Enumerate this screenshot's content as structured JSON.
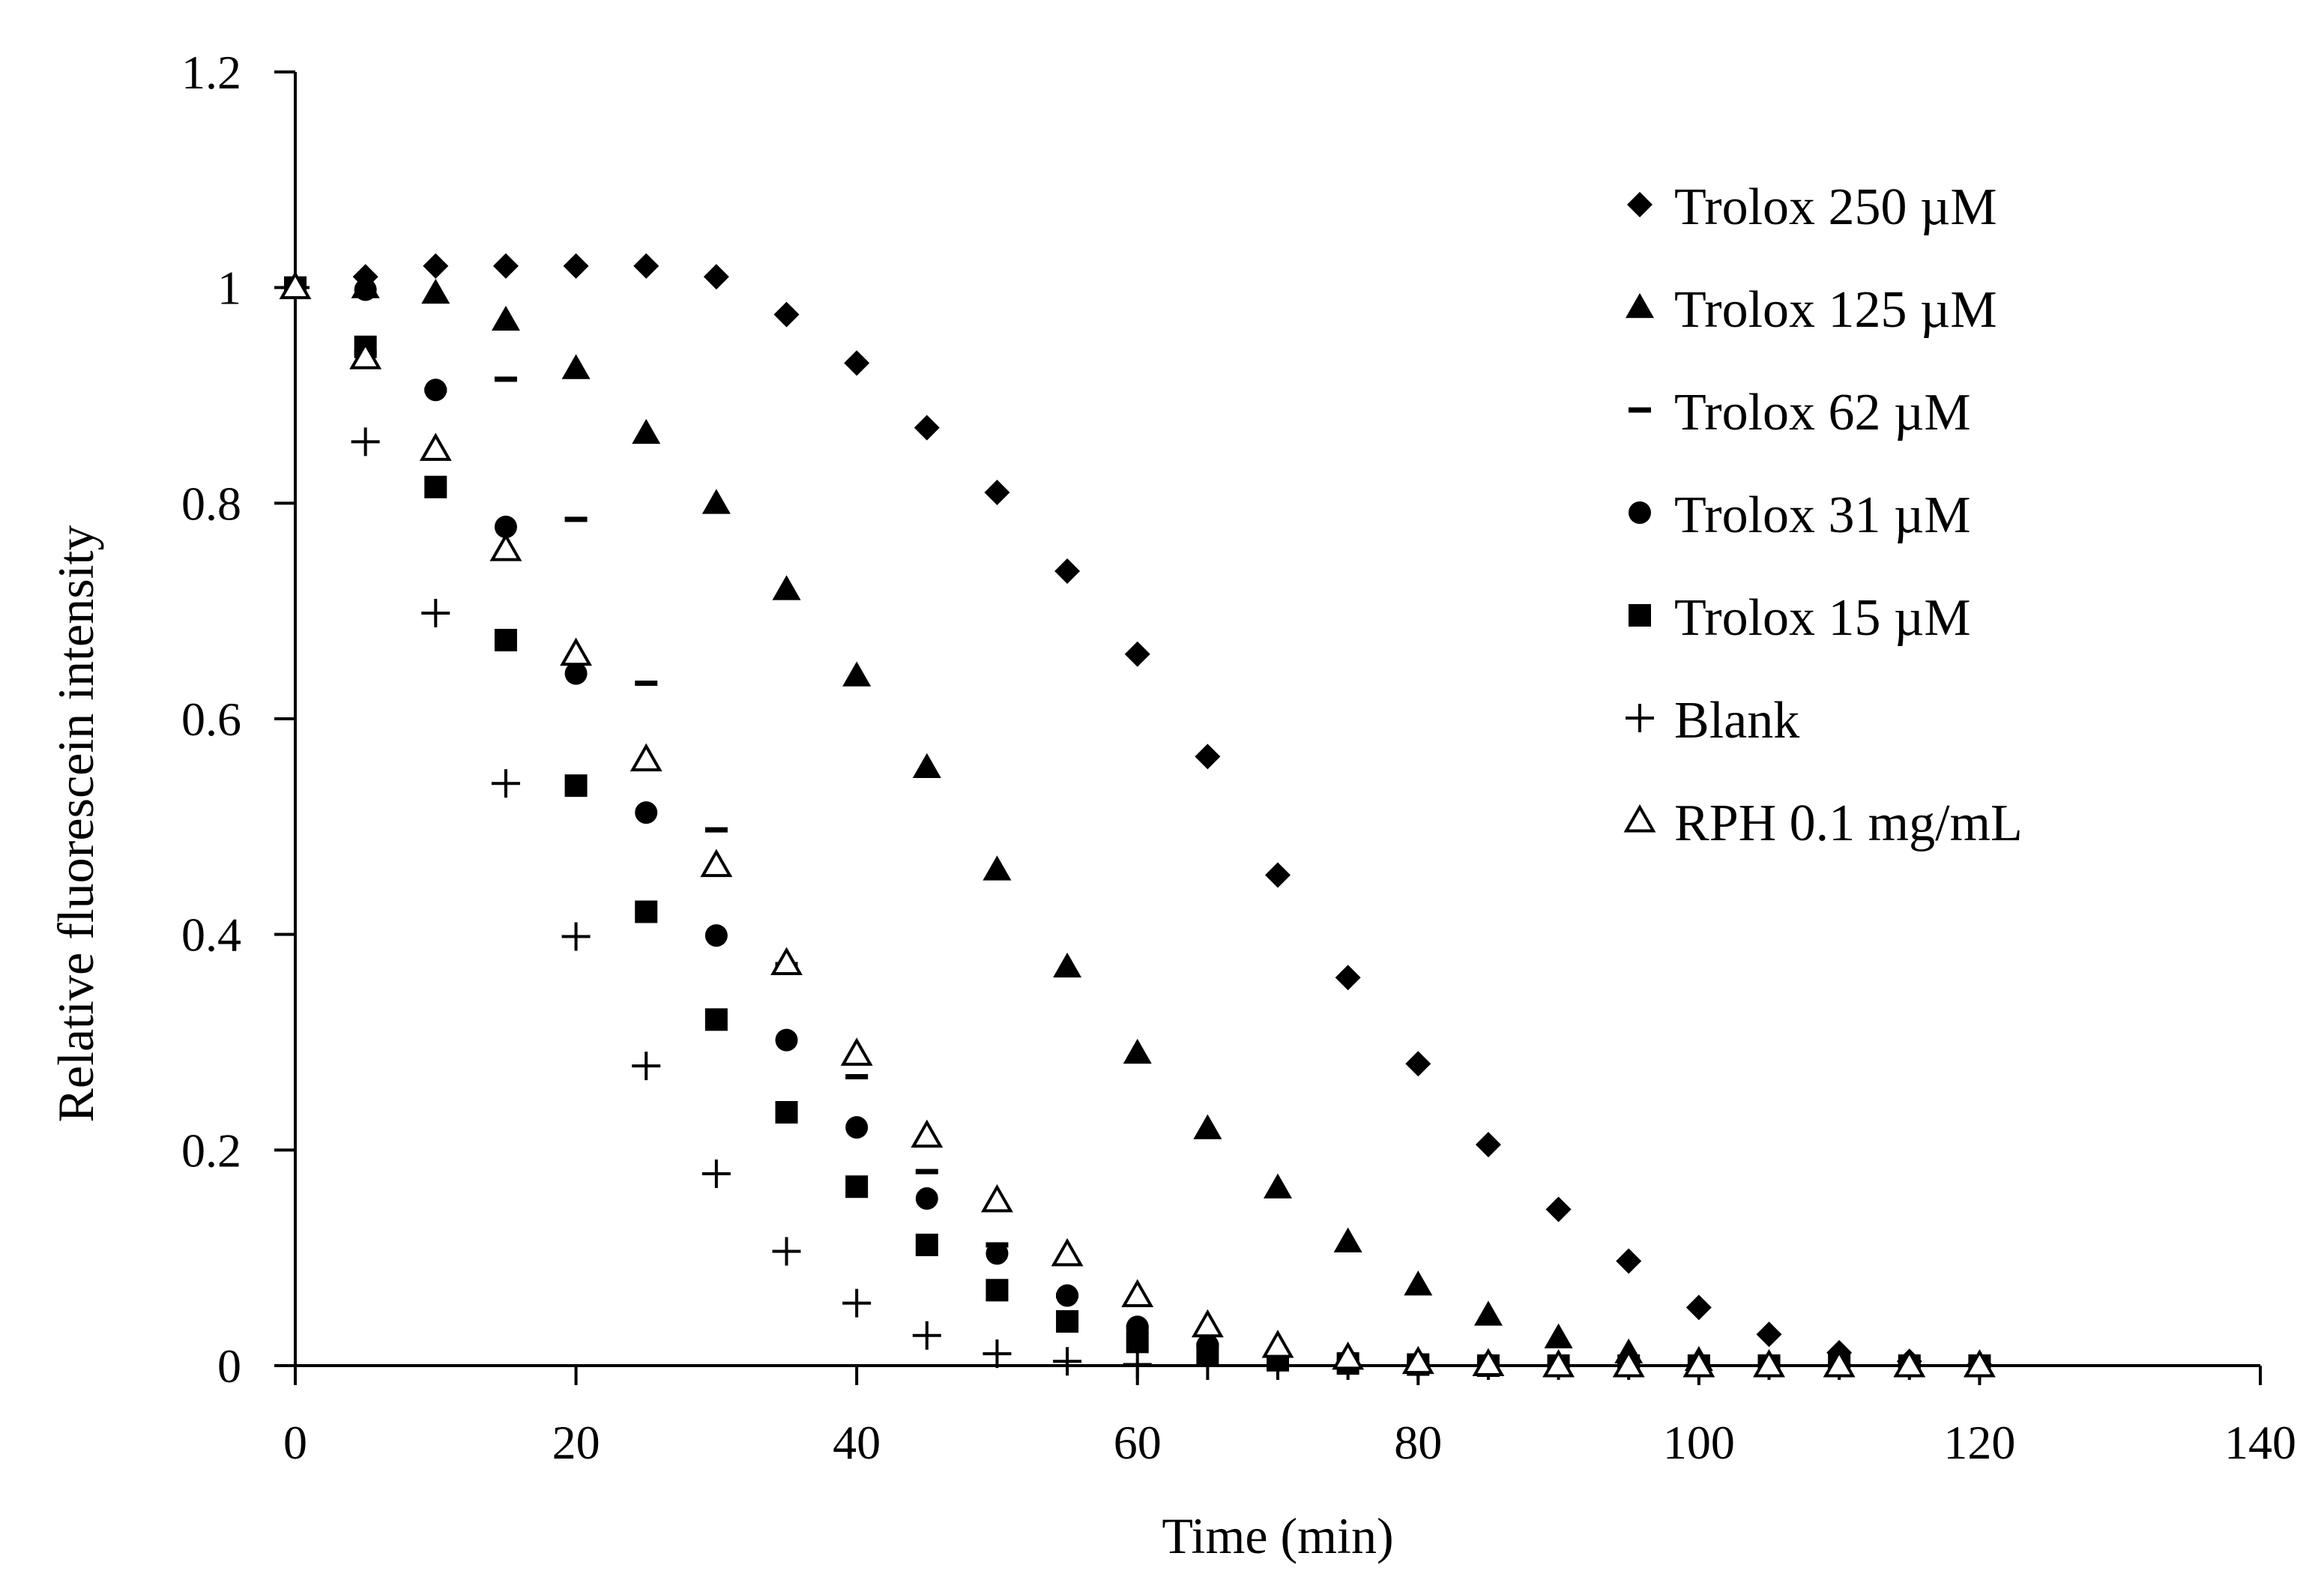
{
  "chart_data": {
    "type": "scatter",
    "title": "",
    "xlabel": "Time (min)",
    "ylabel": "Relative fluorescein intensity",
    "xlim": [
      0,
      140
    ],
    "ylim": [
      0,
      1.2
    ],
    "xticks": [
      0,
      20,
      40,
      60,
      80,
      100,
      120,
      140
    ],
    "yticks": [
      0,
      0.2,
      0.4,
      0.6,
      0.8,
      1,
      1.2
    ],
    "xtick_labels": [
      "0",
      "20",
      "40",
      "60",
      "80",
      "100",
      "120",
      "140"
    ],
    "ytick_labels": [
      "0",
      "0.2",
      "0.4",
      "0.6",
      "0.8",
      "1",
      "1.2"
    ],
    "grid": false,
    "legend_position": "right",
    "series": [
      {
        "name": "Trolox 250 µM",
        "marker": "diamond",
        "x": [
          0,
          5,
          10,
          15,
          20,
          25,
          30,
          35,
          40,
          45,
          50,
          55,
          60,
          65,
          70,
          75,
          80,
          85,
          90,
          95,
          100,
          105,
          110,
          115,
          120
        ],
        "y": [
          1,
          1.01,
          1.02,
          1.02,
          1.02,
          1.02,
          1.01,
          0.975,
          0.93,
          0.87,
          0.81,
          0.737,
          0.66,
          0.565,
          0.455,
          0.36,
          0.28,
          0.205,
          0.145,
          0.097,
          0.054,
          0.029,
          0.012,
          0.004,
          0.001
        ]
      },
      {
        "name": "Trolox 125 µM",
        "marker": "triangle-filled",
        "x": [
          0,
          5,
          10,
          15,
          20,
          25,
          30,
          35,
          40,
          45,
          50,
          55,
          60,
          65,
          70,
          75,
          80,
          85,
          90,
          95,
          100,
          105,
          110,
          115,
          120
        ],
        "y": [
          1,
          1.0,
          0.995,
          0.97,
          0.925,
          0.865,
          0.8,
          0.72,
          0.64,
          0.555,
          0.46,
          0.37,
          0.29,
          0.22,
          0.165,
          0.115,
          0.075,
          0.047,
          0.026,
          0.012,
          0.005,
          0.002,
          0.001,
          0,
          0
        ]
      },
      {
        "name": "Trolox 62 µM",
        "marker": "dash",
        "x": [
          0,
          5,
          10,
          15,
          20,
          25,
          30,
          35,
          40,
          45,
          50,
          55,
          60,
          65,
          70,
          75,
          80,
          85,
          90,
          95,
          100,
          105,
          110,
          115,
          120
        ],
        "y": [
          1,
          0.94,
          0.905,
          0.915,
          0.785,
          0.633,
          0.497,
          0.372,
          0.268,
          0.18,
          0.112,
          0.065,
          0.035,
          0.018,
          0.009,
          0.004,
          0.002,
          0.001,
          0,
          0,
          0,
          0,
          0,
          0,
          0
        ]
      },
      {
        "name": "Trolox 31 µM",
        "marker": "circle-filled",
        "x": [
          0,
          5,
          10,
          15,
          20,
          25,
          30,
          35,
          40,
          45,
          50,
          55,
          60,
          65,
          70,
          75,
          80,
          85,
          90,
          95,
          100,
          105,
          110,
          115,
          120
        ],
        "y": [
          1,
          0.998,
          0.905,
          0.778,
          0.642,
          0.513,
          0.399,
          0.302,
          0.221,
          0.155,
          0.104,
          0.065,
          0.036,
          0.019,
          0.009,
          0.004,
          0.002,
          0.001,
          0,
          0,
          0,
          0,
          0,
          0,
          0
        ]
      },
      {
        "name": "Trolox 15 µM",
        "marker": "square-filled",
        "x": [
          0,
          5,
          10,
          15,
          20,
          25,
          30,
          35,
          40,
          45,
          50,
          55,
          60,
          65,
          70,
          75,
          80,
          85,
          90,
          95,
          100,
          105,
          110,
          115,
          120
        ],
        "y": [
          1,
          0.945,
          0.815,
          0.673,
          0.538,
          0.421,
          0.321,
          0.235,
          0.166,
          0.112,
          0.07,
          0.041,
          0.022,
          0.011,
          0.005,
          0.002,
          0.001,
          0,
          0,
          0,
          0,
          0,
          0,
          0,
          0
        ]
      },
      {
        "name": "Blank",
        "marker": "plus",
        "x": [
          0,
          5,
          10,
          15,
          20,
          25,
          30,
          35,
          40,
          45,
          50,
          55,
          60,
          65,
          70,
          75,
          80,
          85,
          90,
          95,
          100,
          105,
          110,
          115,
          120
        ],
        "y": [
          1,
          0.857,
          0.698,
          0.54,
          0.398,
          0.278,
          0.178,
          0.106,
          0.058,
          0.028,
          0.011,
          0.004,
          0.001,
          0,
          0,
          0,
          0,
          0,
          0,
          0,
          0,
          0,
          0,
          0,
          0
        ]
      },
      {
        "name": "RPH 0.1 mg/mL",
        "marker": "triangle-open",
        "x": [
          0,
          5,
          10,
          15,
          20,
          25,
          30,
          35,
          40,
          45,
          50,
          55,
          60,
          65,
          70,
          75,
          80,
          85,
          90,
          95,
          100,
          105,
          110,
          115,
          120
        ],
        "y": [
          1,
          0.935,
          0.85,
          0.757,
          0.66,
          0.562,
          0.464,
          0.373,
          0.289,
          0.213,
          0.153,
          0.103,
          0.065,
          0.037,
          0.018,
          0.007,
          0.003,
          0.001,
          0,
          0,
          0,
          0,
          0,
          0,
          0
        ]
      }
    ]
  }
}
